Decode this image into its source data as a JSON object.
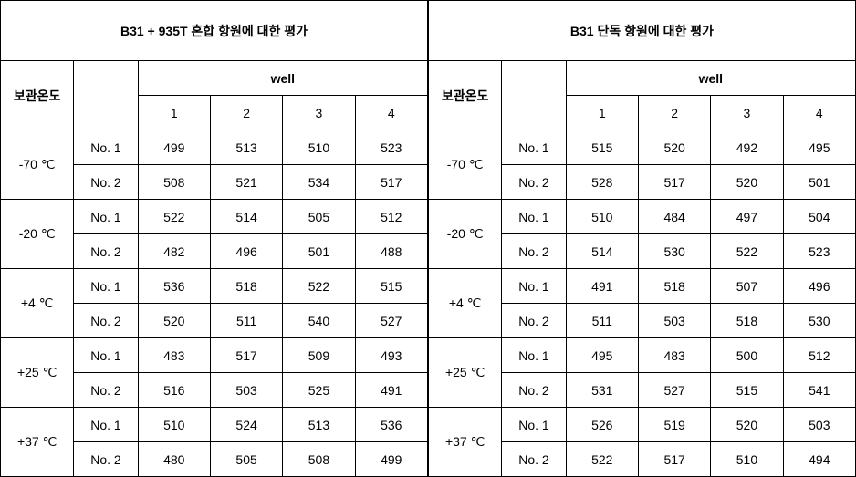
{
  "left": {
    "title": "B31 + 935T 혼합 항원에 대한 평가",
    "tempHeader": "보관온도",
    "wellHeader": "well",
    "wells": [
      "1",
      "2",
      "3",
      "4"
    ],
    "rows": [
      {
        "temp": "-70 ℃",
        "samples": [
          {
            "label": "No. 1",
            "vals": [
              "499",
              "513",
              "510",
              "523"
            ]
          },
          {
            "label": "No. 2",
            "vals": [
              "508",
              "521",
              "534",
              "517"
            ]
          }
        ]
      },
      {
        "temp": "-20 ℃",
        "samples": [
          {
            "label": "No. 1",
            "vals": [
              "522",
              "514",
              "505",
              "512"
            ]
          },
          {
            "label": "No. 2",
            "vals": [
              "482",
              "496",
              "501",
              "488"
            ]
          }
        ]
      },
      {
        "temp": "+4 ℃",
        "samples": [
          {
            "label": "No. 1",
            "vals": [
              "536",
              "518",
              "522",
              "515"
            ]
          },
          {
            "label": "No. 2",
            "vals": [
              "520",
              "511",
              "540",
              "527"
            ]
          }
        ]
      },
      {
        "temp": "+25 ℃",
        "samples": [
          {
            "label": "No. 1",
            "vals": [
              "483",
              "517",
              "509",
              "493"
            ]
          },
          {
            "label": "No. 2",
            "vals": [
              "516",
              "503",
              "525",
              "491"
            ]
          }
        ]
      },
      {
        "temp": "+37 ℃",
        "samples": [
          {
            "label": "No. 1",
            "vals": [
              "510",
              "524",
              "513",
              "536"
            ]
          },
          {
            "label": "No. 2",
            "vals": [
              "480",
              "505",
              "508",
              "499"
            ]
          }
        ]
      }
    ]
  },
  "right": {
    "title": "B31 단독 항원에 대한 평가",
    "tempHeader": "보관온도",
    "wellHeader": "well",
    "wells": [
      "1",
      "2",
      "3",
      "4"
    ],
    "rows": [
      {
        "temp": "-70 ℃",
        "samples": [
          {
            "label": "No. 1",
            "vals": [
              "515",
              "520",
              "492",
              "495"
            ]
          },
          {
            "label": "No. 2",
            "vals": [
              "528",
              "517",
              "520",
              "501"
            ]
          }
        ]
      },
      {
        "temp": "-20 ℃",
        "samples": [
          {
            "label": "No. 1",
            "vals": [
              "510",
              "484",
              "497",
              "504"
            ]
          },
          {
            "label": "No. 2",
            "vals": [
              "514",
              "530",
              "522",
              "523"
            ]
          }
        ]
      },
      {
        "temp": "+4 ℃",
        "samples": [
          {
            "label": "No. 1",
            "vals": [
              "491",
              "518",
              "507",
              "496"
            ]
          },
          {
            "label": "No. 2",
            "vals": [
              "511",
              "503",
              "518",
              "530"
            ]
          }
        ]
      },
      {
        "temp": "+25 ℃",
        "samples": [
          {
            "label": "No. 1",
            "vals": [
              "495",
              "483",
              "500",
              "512"
            ]
          },
          {
            "label": "No. 2",
            "vals": [
              "531",
              "527",
              "515",
              "541"
            ]
          }
        ]
      },
      {
        "temp": "+37 ℃",
        "samples": [
          {
            "label": "No. 1",
            "vals": [
              "526",
              "519",
              "520",
              "503"
            ]
          },
          {
            "label": "No. 2",
            "vals": [
              "522",
              "517",
              "510",
              "494"
            ]
          }
        ]
      }
    ]
  }
}
